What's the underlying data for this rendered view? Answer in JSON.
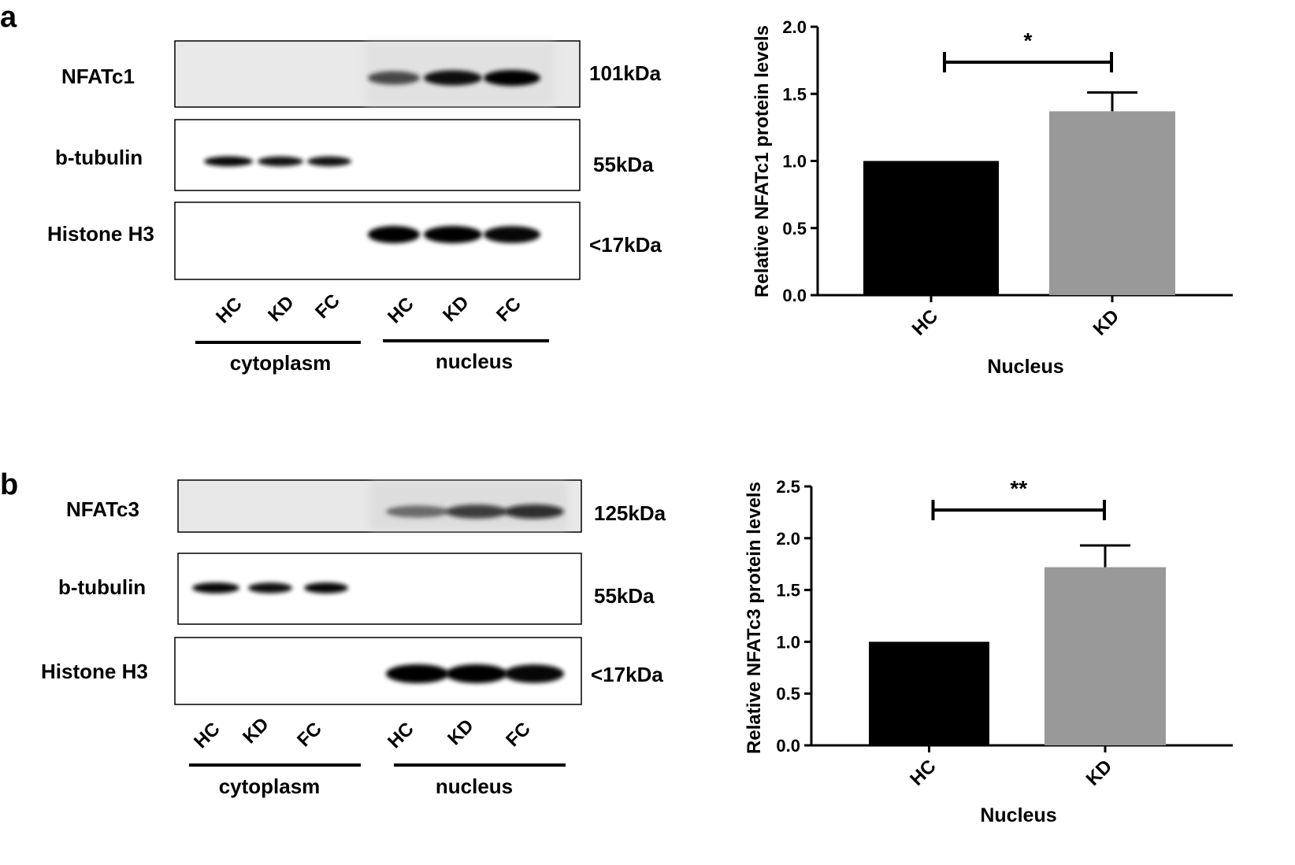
{
  "panels": [
    {
      "letter": "a",
      "blot": {
        "rows": [
          {
            "protein": "NFATc1",
            "size": "101kDa",
            "bands": [
              0,
              0,
              0,
              0.62,
              0.9,
              1.0
            ]
          },
          {
            "protein": "b-tubulin",
            "size": "55kDa",
            "bands": [
              0.95,
              0.9,
              0.9,
              0,
              0,
              0
            ]
          },
          {
            "protein": "Histone H3",
            "size": "<17kDa",
            "bands": [
              0,
              0,
              0,
              1.0,
              1.0,
              0.95
            ]
          }
        ],
        "lanes": [
          "HC",
          "KD",
          "FC",
          "HC",
          "KD",
          "FC"
        ],
        "groups": [
          "cytoplasm",
          "nucleus"
        ]
      }
    },
    {
      "letter": "b",
      "blot": {
        "rows": [
          {
            "protein": "NFATc3",
            "size": "125kDa",
            "bands": [
              0,
              0,
              0,
              0.4,
              0.7,
              0.75
            ]
          },
          {
            "protein": "b-tubulin",
            "size": "55kDa",
            "bands": [
              0.95,
              0.9,
              0.95,
              0,
              0,
              0
            ]
          },
          {
            "protein": "Histone H3",
            "size": "<17kDa",
            "bands": [
              0,
              0,
              0,
              1.0,
              1.0,
              0.95
            ]
          }
        ],
        "lanes": [
          "HC",
          "KD",
          "FC",
          "HC",
          "KD",
          "FC"
        ],
        "groups": [
          "cytoplasm",
          "nucleus"
        ]
      }
    }
  ],
  "chart_data": [
    {
      "type": "bar",
      "categories": [
        "HC",
        "KD"
      ],
      "values": [
        1.0,
        1.37
      ],
      "errors": [
        0,
        0.14
      ],
      "colors": [
        "#000000",
        "#999999"
      ],
      "xlabel": "Nucleus",
      "ylabel": "Relative NFATc1 protein levels",
      "ylim": [
        0,
        2.0
      ],
      "yticks": [
        "0.0",
        "0.5",
        "1.0",
        "1.5",
        "2.0"
      ],
      "significance": {
        "from": "HC",
        "to": "KD",
        "label": "*"
      }
    },
    {
      "type": "bar",
      "categories": [
        "HC",
        "KD"
      ],
      "values": [
        1.0,
        1.72
      ],
      "errors": [
        0,
        0.21
      ],
      "colors": [
        "#000000",
        "#999999"
      ],
      "xlabel": "Nucleus",
      "ylabel": "Relative NFATc3 protein levels",
      "ylim": [
        0,
        2.5
      ],
      "yticks": [
        "0.0",
        "0.5",
        "1.0",
        "1.5",
        "2.0",
        "2.5"
      ],
      "significance": {
        "from": "HC",
        "to": "KD",
        "label": "**"
      }
    }
  ]
}
